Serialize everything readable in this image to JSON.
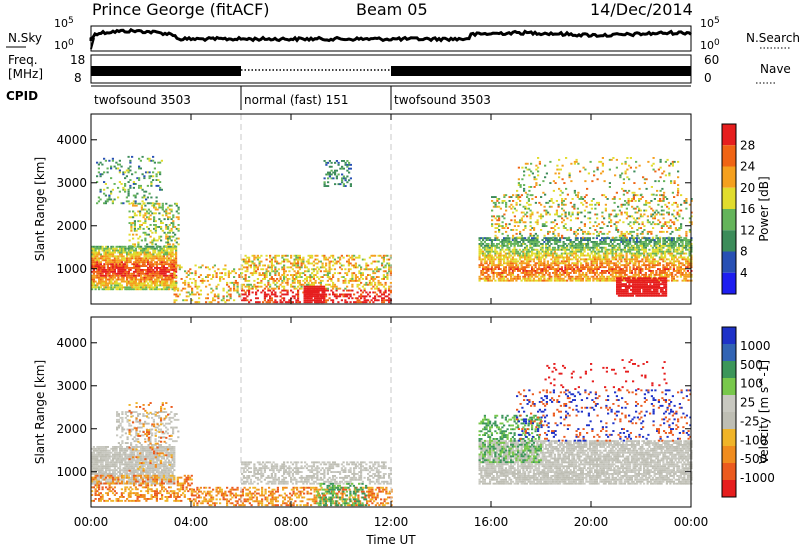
{
  "header": {
    "site": "Prince George (fitACF)",
    "beam": "Beam 05",
    "date": "14/Dec/2014"
  },
  "top_panels": {
    "nsky_label": "N.Sky",
    "nsky_ticks": [
      "10^5",
      "10^0"
    ],
    "nsearch_label": "N.Search",
    "nsearch_ticks": [
      "10^5",
      "10^0"
    ],
    "freq_label_line1": "Freq.",
    "freq_label_line2": "[MHz]",
    "freq_ticks": [
      "18",
      "8"
    ],
    "nave_label": "Nave",
    "nave_ticks": [
      "60",
      "0"
    ],
    "cpid_label": "CPID",
    "cpid_segments": [
      {
        "name": "twofsound 3503",
        "start_hour": 0,
        "end_hour": 6
      },
      {
        "name": "normal (fast) 151",
        "start_hour": 6,
        "end_hour": 12
      },
      {
        "name": "twofsound 3503",
        "start_hour": 12,
        "end_hour": 24
      }
    ]
  },
  "colors": {
    "power_scale": [
      "#1e1ef0",
      "#2850b4",
      "#3c8c5a",
      "#64b45a",
      "#e1dc2d",
      "#f5a01e",
      "#f06414",
      "#e61e1e"
    ],
    "velocity_scale": [
      "#1e32c8",
      "#3264b4",
      "#3c965a",
      "#78c84b",
      "#c8c8c0",
      "#bebeb4",
      "#f0b428",
      "#f08c1e",
      "#eb5a1e",
      "#e61e1e"
    ]
  },
  "chart_data": [
    {
      "type": "heatmap",
      "name": "power",
      "ylabel": "Slant Range [km]",
      "xlabel": "Time UT",
      "x_range_hours": [
        0,
        24
      ],
      "ylim": [
        180,
        4600
      ],
      "x_ticks": [
        "00:00",
        "04:00",
        "08:00",
        "12:00",
        "16:00",
        "20:00",
        "00:00"
      ],
      "y_ticks": [
        1000,
        2000,
        3000,
        4000
      ],
      "colorbar_label": "Power [dB]",
      "colorbar_ticks": [
        4,
        8,
        12,
        16,
        20,
        24,
        28
      ]
    },
    {
      "type": "heatmap",
      "name": "velocity",
      "ylabel": "Slant Range [km]",
      "xlabel": "Time UT",
      "x_range_hours": [
        0,
        24
      ],
      "ylim": [
        180,
        4600
      ],
      "x_ticks": [
        "00:00",
        "04:00",
        "08:00",
        "12:00",
        "16:00",
        "20:00",
        "00:00"
      ],
      "y_ticks": [
        1000,
        2000,
        3000,
        4000
      ],
      "colorbar_label": "Velocity [m s^-1]",
      "colorbar_ticks": [
        1000,
        500,
        100,
        25,
        -25,
        -100,
        -500,
        -1000
      ]
    }
  ]
}
